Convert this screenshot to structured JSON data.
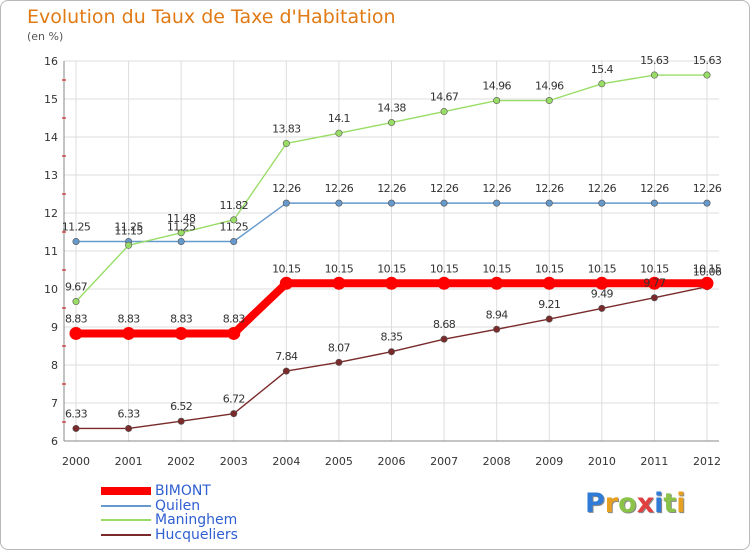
{
  "title": "Evolution du Taux de Taxe d'Habitation",
  "subtitle": "(en %)",
  "logo_text": "Proxiti",
  "chart_data": {
    "type": "line",
    "title": "Evolution du Taux de Taxe d'Habitation",
    "ylabel": "(en %)",
    "xlabel": "",
    "x": [
      "2000",
      "2001",
      "2002",
      "2003",
      "2004",
      "2005",
      "2006",
      "2007",
      "2008",
      "2009",
      "2010",
      "2011",
      "2012"
    ],
    "ylim": [
      6,
      16
    ],
    "yticks": [
      6,
      7,
      8,
      9,
      10,
      11,
      12,
      13,
      14,
      15,
      16
    ],
    "grid": true,
    "legend_position": "bottom-left",
    "series": [
      {
        "name": "BIMONT",
        "color": "#ff0000",
        "values": [
          8.83,
          8.83,
          8.83,
          8.83,
          10.15,
          10.15,
          10.15,
          10.15,
          10.15,
          10.15,
          10.15,
          10.15,
          10.15
        ]
      },
      {
        "name": "Quilen",
        "color": "#6699cc",
        "values": [
          11.25,
          11.25,
          11.25,
          11.25,
          12.26,
          12.26,
          12.26,
          12.26,
          12.26,
          12.26,
          12.26,
          12.26,
          12.26
        ]
      },
      {
        "name": "Maninghem",
        "color": "#99dd66",
        "values": [
          9.67,
          11.15,
          11.48,
          11.82,
          13.83,
          14.1,
          14.38,
          14.67,
          14.96,
          14.96,
          15.4,
          15.63,
          15.63
        ]
      },
      {
        "name": "Hucqueliers",
        "color": "#7a2a2a",
        "values": [
          6.33,
          6.33,
          6.52,
          6.72,
          7.84,
          8.07,
          8.35,
          8.68,
          8.94,
          9.21,
          9.49,
          9.77,
          10.06
        ]
      }
    ]
  },
  "colors": {
    "title": "#e07a14",
    "axis_text": "#333333",
    "grid": "#dddddd",
    "legend_text": "#2f5fd0",
    "minor_tick": "#cc0000"
  }
}
